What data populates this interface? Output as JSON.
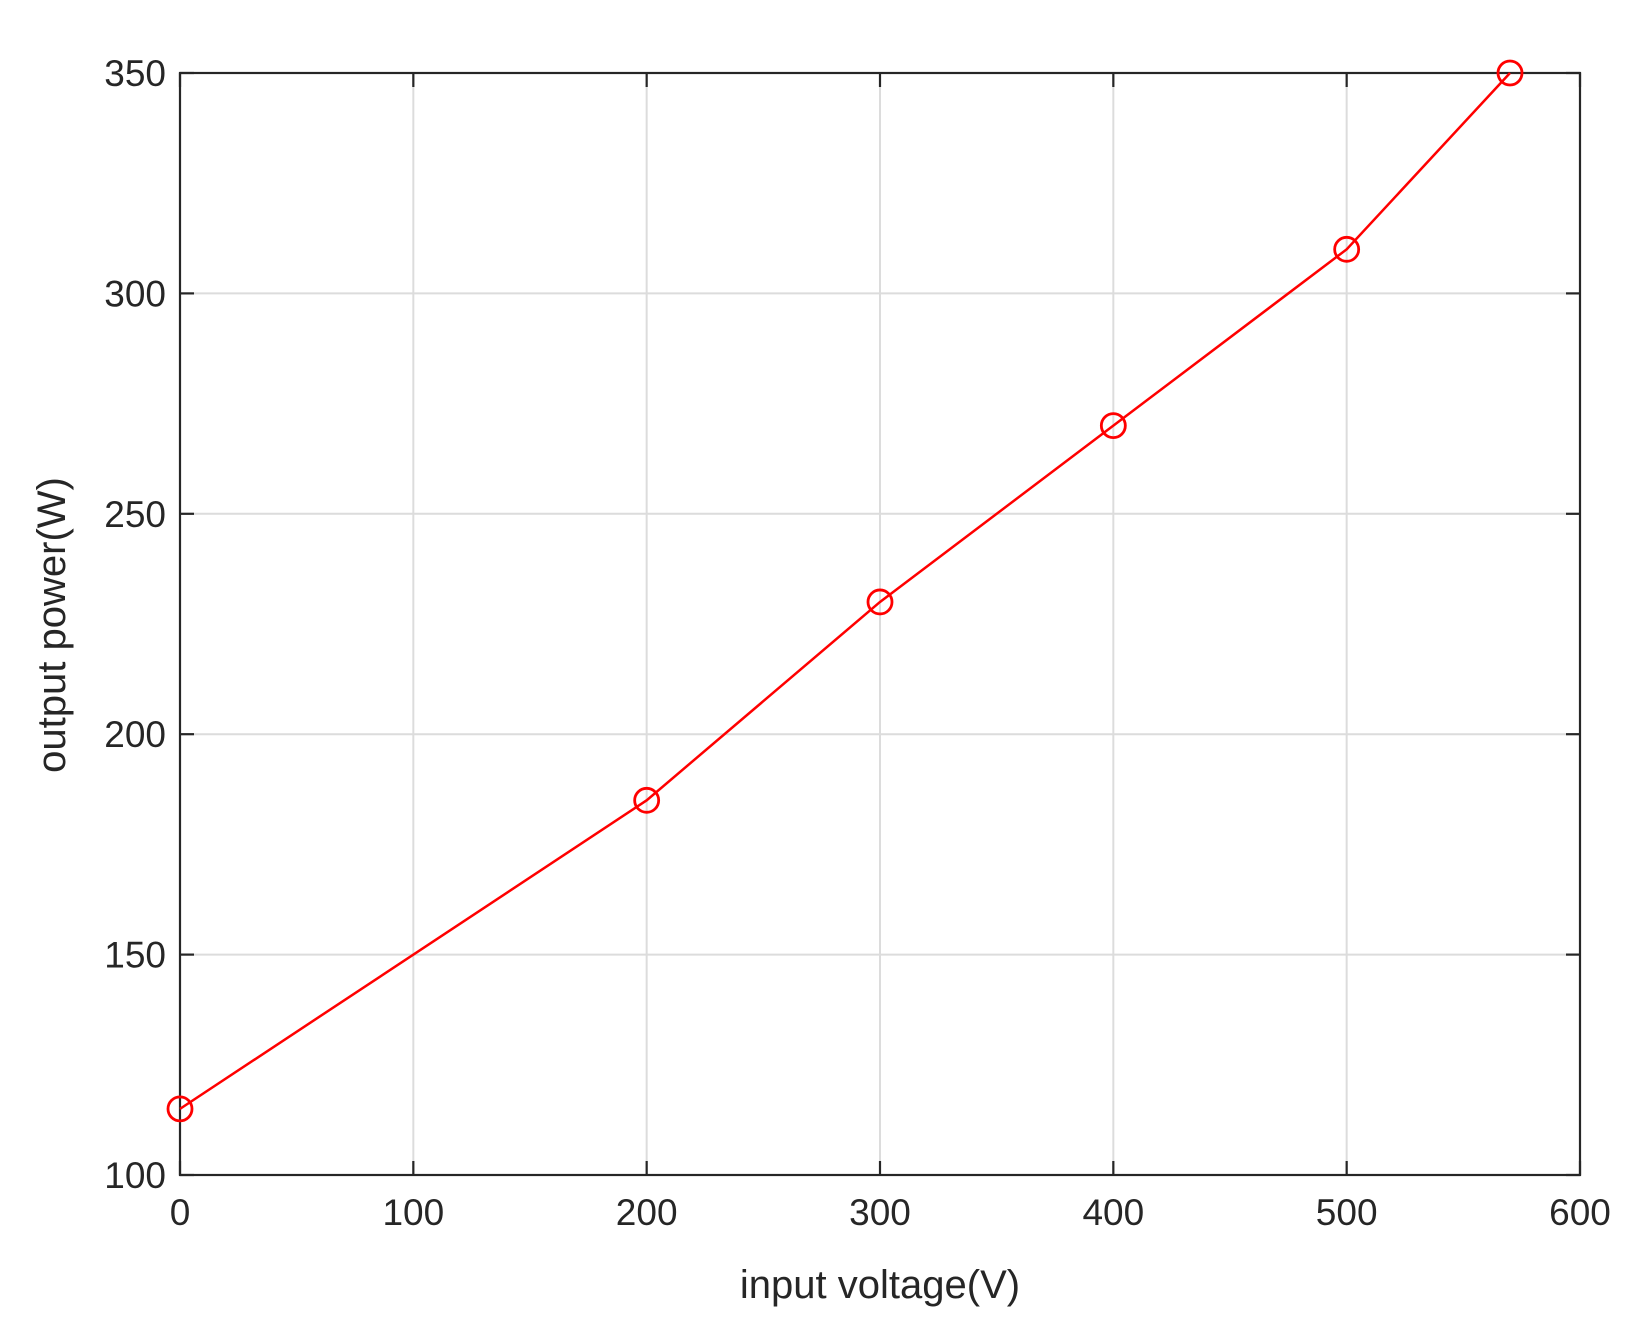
{
  "chart_data": {
    "type": "line",
    "title": "",
    "xlabel": "input voltage(V)",
    "ylabel": "output power(W)",
    "xlim": [
      0,
      600
    ],
    "ylim": [
      100,
      350
    ],
    "xticks": [
      0,
      100,
      200,
      300,
      400,
      500,
      600
    ],
    "yticks": [
      100,
      150,
      200,
      250,
      300,
      350
    ],
    "grid": true,
    "series": [
      {
        "color": "#ff0000",
        "marker": "circle",
        "x": [
          0,
          200,
          300,
          400,
          500,
          570
        ],
        "y": [
          115,
          185,
          230,
          270,
          310,
          350
        ]
      }
    ]
  }
}
